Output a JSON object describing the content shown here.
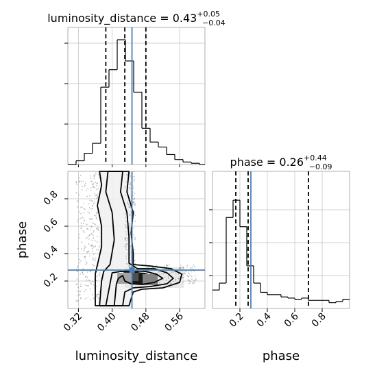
{
  "chart_data": [
    {
      "type": "histogram",
      "panel": "1d-marginal",
      "parameter": "luminosity_distance",
      "title": {
        "prefix": "luminosity_distance = ",
        "median": "0.43",
        "plus": "+0.05",
        "minus": "−0.04"
      },
      "xlim": [
        0.295,
        0.62
      ],
      "bin_edges": [
        0.295,
        0.3145,
        0.334,
        0.3535,
        0.373,
        0.3925,
        0.412,
        0.4315,
        0.451,
        0.4705,
        0.49,
        0.5095,
        0.529,
        0.5485,
        0.568,
        0.5875,
        0.607,
        0.62
      ],
      "counts": [
        0.0,
        0.03,
        0.09,
        0.17,
        0.62,
        0.76,
        1.0,
        0.83,
        0.58,
        0.29,
        0.18,
        0.14,
        0.08,
        0.04,
        0.02,
        0.01,
        0.0
      ],
      "quantiles": [
        0.385,
        0.43,
        0.48
      ],
      "truth": 0.447,
      "grid": true
    },
    {
      "type": "histogram",
      "panel": "1d-marginal",
      "parameter": "phase",
      "title": {
        "prefix": "phase = ",
        "median": "0.26",
        "plus": "+0.44",
        "minus": "−0.09"
      },
      "xlim": [
        0.0,
        1.0
      ],
      "bin_edges": [
        0.0,
        0.05,
        0.1,
        0.15,
        0.2,
        0.25,
        0.3,
        0.35,
        0.4,
        0.45,
        0.5,
        0.55,
        0.6,
        0.65,
        0.7,
        0.75,
        0.8,
        0.85,
        0.9,
        0.95,
        1.0
      ],
      "counts": [
        0.16,
        0.22,
        0.79,
        0.94,
        0.71,
        0.37,
        0.22,
        0.14,
        0.12,
        0.12,
        0.1,
        0.09,
        0.08,
        0.09,
        0.07,
        0.07,
        0.07,
        0.05,
        0.06,
        0.08
      ],
      "quantiles": [
        0.17,
        0.26,
        0.7
      ],
      "truth": 0.28,
      "xticks": [
        0.2,
        0.4,
        0.6,
        0.8
      ],
      "xticklabels": [
        "0.2",
        "0.4",
        "0.6",
        "0.8"
      ],
      "xlabel": "phase",
      "grid": true
    },
    {
      "type": "scatter-contour",
      "panel": "2d-joint",
      "x_parameter": "luminosity_distance",
      "y_parameter": "phase",
      "xlim": [
        0.295,
        0.62
      ],
      "ylim": [
        0.0,
        1.0
      ],
      "xticks": [
        0.32,
        0.4,
        0.48,
        0.56
      ],
      "xticklabels": [
        "0.32",
        "0.40",
        "0.48",
        "0.56"
      ],
      "yticks": [
        0.2,
        0.4,
        0.6,
        0.8
      ],
      "yticklabels": [
        "0.2",
        "0.4",
        "0.6",
        "0.8"
      ],
      "xlabel": "luminosity_distance",
      "ylabel": "phase",
      "truth": {
        "x": 0.447,
        "y": 0.28
      },
      "density_blobs": [
        {
          "x": 0.465,
          "y": 0.22,
          "value": 1.0
        },
        {
          "x": 0.445,
          "y": 0.24,
          "value": 0.75
        },
        {
          "x": 0.49,
          "y": 0.21,
          "value": 0.5
        },
        {
          "x": 0.43,
          "y": 0.22,
          "value": 0.35
        }
      ],
      "contours": [
        [
          [
            0.385,
            0.02
          ],
          [
            0.395,
            0.18
          ],
          [
            0.4,
            0.26
          ],
          [
            0.42,
            0.27
          ],
          [
            0.455,
            0.265
          ],
          [
            0.48,
            0.27
          ],
          [
            0.505,
            0.25
          ],
          [
            0.52,
            0.22
          ],
          [
            0.5,
            0.19
          ],
          [
            0.47,
            0.175
          ],
          [
            0.445,
            0.18
          ],
          [
            0.43,
            0.2
          ],
          [
            0.425,
            0.24
          ],
          [
            0.415,
            0.22
          ],
          [
            0.41,
            0.18
          ],
          [
            0.405,
            0.02
          ]
        ],
        [
          [
            0.37,
            0.02
          ],
          [
            0.375,
            0.2
          ],
          [
            0.38,
            0.27
          ],
          [
            0.395,
            0.32
          ],
          [
            0.405,
            0.5
          ],
          [
            0.4,
            0.7
          ],
          [
            0.385,
            0.85
          ],
          [
            0.39,
            1.0
          ],
          [
            0.425,
            1.0
          ],
          [
            0.42,
            0.85
          ],
          [
            0.435,
            0.7
          ],
          [
            0.44,
            0.52
          ],
          [
            0.44,
            0.33
          ],
          [
            0.46,
            0.29
          ],
          [
            0.5,
            0.29
          ],
          [
            0.53,
            0.26
          ],
          [
            0.545,
            0.22
          ],
          [
            0.53,
            0.18
          ],
          [
            0.49,
            0.16
          ],
          [
            0.45,
            0.15
          ],
          [
            0.43,
            0.12
          ],
          [
            0.425,
            0.02
          ]
        ],
        [
          [
            0.36,
            0.02
          ],
          [
            0.36,
            0.25
          ],
          [
            0.375,
            0.45
          ],
          [
            0.375,
            0.6
          ],
          [
            0.365,
            0.75
          ],
          [
            0.375,
            0.9
          ],
          [
            0.37,
            1.0
          ],
          [
            0.44,
            1.0
          ],
          [
            0.435,
            0.85
          ],
          [
            0.45,
            0.7
          ],
          [
            0.445,
            0.55
          ],
          [
            0.45,
            0.4
          ],
          [
            0.45,
            0.32
          ],
          [
            0.49,
            0.31
          ],
          [
            0.54,
            0.29
          ],
          [
            0.565,
            0.25
          ],
          [
            0.56,
            0.19
          ],
          [
            0.52,
            0.15
          ],
          [
            0.47,
            0.14
          ],
          [
            0.45,
            0.12
          ],
          [
            0.44,
            0.02
          ]
        ]
      ],
      "scatter_cloud": [
        {
          "x0": 0.315,
          "x1": 0.37,
          "y0": 0.05,
          "y1": 1.0,
          "n": 260
        },
        {
          "x0": 0.43,
          "x1": 0.455,
          "y0": 0.3,
          "y1": 1.0,
          "n": 140
        },
        {
          "x0": 0.48,
          "x1": 0.6,
          "y0": 0.18,
          "y1": 0.32,
          "n": 160
        }
      ]
    }
  ]
}
